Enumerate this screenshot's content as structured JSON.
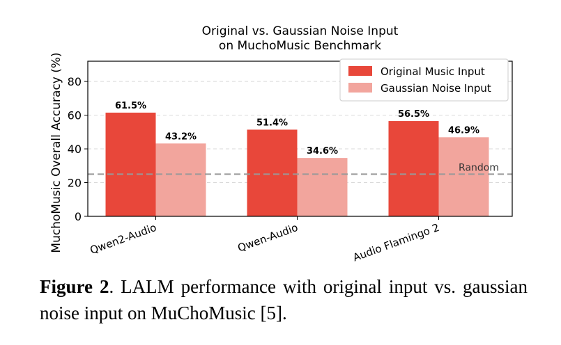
{
  "chart_data": {
    "type": "bar",
    "title": [
      "Original vs. Gaussian Noise Input",
      "on MuchoMusic Benchmark"
    ],
    "xlabel": "",
    "ylabel": "MuchoMusic Overall Accuracy (%)",
    "categories": [
      "Qwen2-Audio",
      "Qwen-Audio",
      "Audio Flamingo 2"
    ],
    "series": [
      {
        "name": "Original Music Input",
        "values": [
          61.5,
          51.4,
          56.5
        ],
        "labels": [
          "61.5%",
          "51.4%",
          "56.5%"
        ],
        "color": "#e8473a"
      },
      {
        "name": "Gaussian Noise Input",
        "values": [
          43.2,
          34.6,
          46.9
        ],
        "labels": [
          "43.2%",
          "34.6%",
          "46.9%"
        ],
        "color": "#f2a59d"
      }
    ],
    "ylim": [
      0,
      92
    ],
    "yticks": [
      0,
      20,
      40,
      60,
      80
    ],
    "ytick_labels": [
      "0",
      "20",
      "40",
      "60",
      "80"
    ],
    "grid": "horizontal dashed",
    "legend": "top-right",
    "reference_line": {
      "label": "Random",
      "value": 25,
      "color": "#999999"
    }
  },
  "caption": {
    "label": "Figure 2",
    "text": ".  LALM performance with original input vs. gaussian noise input on MuChoMusic [5]."
  }
}
